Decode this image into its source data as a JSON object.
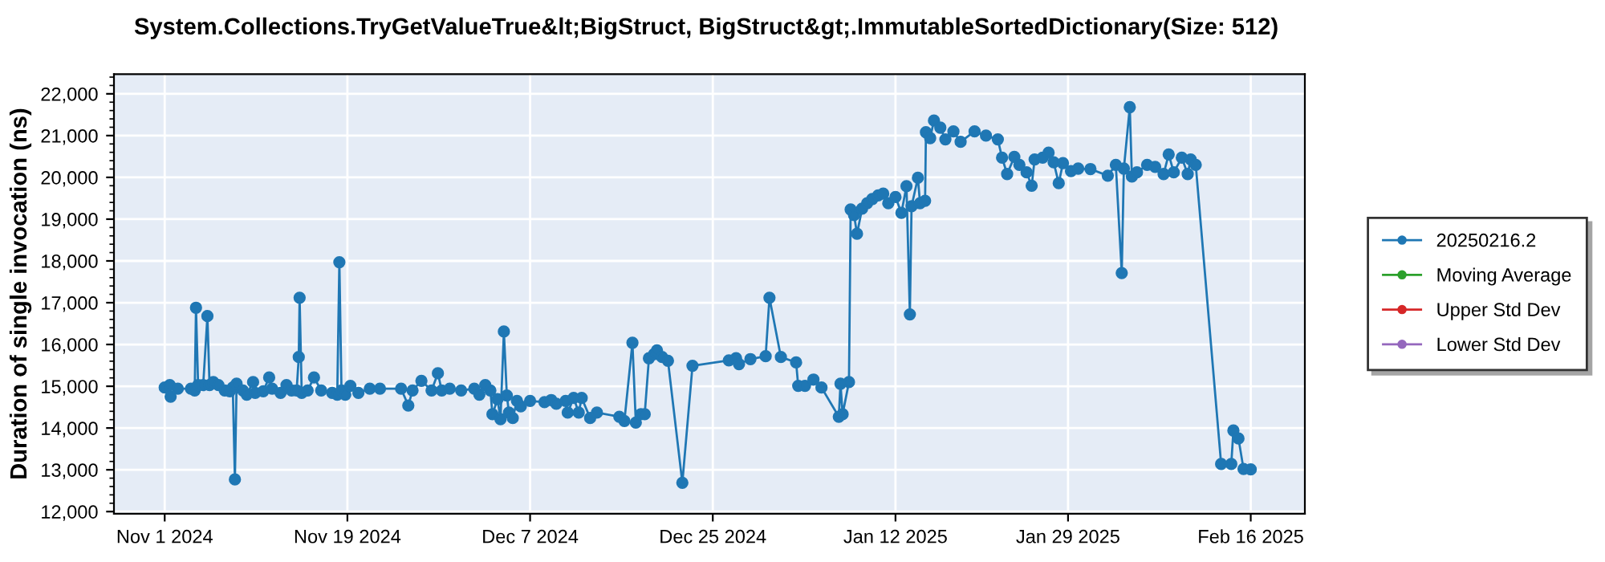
{
  "chart_data": {
    "type": "line",
    "title": "System.Collections.TryGetValueTrue&lt;BigStruct, BigStruct&gt;.ImmutableSortedDictionary(Size: 512)",
    "ylabel": "Duration of single invocation (ns)",
    "xlim": [
      "2024-10-27T00:00",
      "2025-02-21T08:00"
    ],
    "xticks": [
      {
        "value": "2024-11-01",
        "label": "Nov 1 2024"
      },
      {
        "value": "2024-11-19",
        "label": "Nov 19 2024"
      },
      {
        "value": "2024-12-07",
        "label": "Dec 7 2024"
      },
      {
        "value": "2024-12-25",
        "label": "Dec 25 2024"
      },
      {
        "value": "2025-01-12",
        "label": "Jan 12 2025"
      },
      {
        "value": "2025-01-29",
        "label": "Jan 29 2025"
      },
      {
        "value": "2025-02-16",
        "label": "Feb 16 2025"
      }
    ],
    "ylim": [
      11950,
      22470
    ],
    "yticks": [
      {
        "value": 12000,
        "label": "12,000"
      },
      {
        "value": 13000,
        "label": "13,000"
      },
      {
        "value": 14000,
        "label": "14,000"
      },
      {
        "value": 15000,
        "label": "15,000"
      },
      {
        "value": 16000,
        "label": "16,000"
      },
      {
        "value": 17000,
        "label": "17,000"
      },
      {
        "value": 18000,
        "label": "18,000"
      },
      {
        "value": 19000,
        "label": "19,000"
      },
      {
        "value": 20000,
        "label": "20,000"
      },
      {
        "value": 21000,
        "label": "21,000"
      },
      {
        "value": 22000,
        "label": "22,000"
      }
    ],
    "grid": true,
    "legend": "right",
    "marker": "circle",
    "line_style": "solid",
    "series": [
      {
        "name": "20250216.2",
        "color": "#1f77b4",
        "x": [
          "2024-11-01T00:00",
          "2024-11-01T12:00",
          "2024-11-01T14:00",
          "2024-11-02T07:00",
          "2024-11-03T14:00",
          "2024-11-03T23:00",
          "2024-11-04T02:00",
          "2024-11-04T07:00",
          "2024-11-04T19:00",
          "2024-11-05T05:00",
          "2024-11-05T10:00",
          "2024-11-05T19:00",
          "2024-11-06T07:00",
          "2024-11-06T22:00",
          "2024-11-07T10:00",
          "2024-11-07T17:00",
          "2024-11-07T22:00",
          "2024-11-08T02:00",
          "2024-11-08T17:00",
          "2024-11-09T02:00",
          "2024-11-09T17:00",
          "2024-11-09T22:00",
          "2024-11-10T17:00",
          "2024-11-11T07:00",
          "2024-11-11T14:00",
          "2024-11-12T10:00",
          "2024-11-13T00:00",
          "2024-11-13T12:00",
          "2024-11-14T00:00",
          "2024-11-14T05:00",
          "2024-11-14T07:00",
          "2024-11-14T12:00",
          "2024-11-15T02:00",
          "2024-11-15T17:00",
          "2024-11-16T10:00",
          "2024-11-17T12:00",
          "2024-11-18T00:00",
          "2024-11-18T05:00",
          "2024-11-18T10:00",
          "2024-11-18T19:00",
          "2024-11-19T07:00",
          "2024-11-20T02:00",
          "2024-11-21T05:00",
          "2024-11-22T05:00",
          "2024-11-24T07:00",
          "2024-11-25T00:00",
          "2024-11-25T10:00",
          "2024-11-26T07:00",
          "2024-11-27T07:00",
          "2024-11-27T22:00",
          "2024-11-28T07:00",
          "2024-11-29T02:00",
          "2024-11-30T05:00",
          "2024-12-01T12:00",
          "2024-12-02T00:00",
          "2024-12-02T14:00",
          "2024-12-03T02:00",
          "2024-12-03T07:00",
          "2024-12-03T19:00",
          "2024-12-04T02:00",
          "2024-12-04T10:00",
          "2024-12-04T17:00",
          "2024-12-04T22:00",
          "2024-12-05T07:00",
          "2024-12-05T17:00",
          "2024-12-06T02:00",
          "2024-12-07T00:00",
          "2024-12-08T10:00",
          "2024-12-09T02:00",
          "2024-12-09T14:00",
          "2024-12-10T12:00",
          "2024-12-10T17:00",
          "2024-12-11T07:00",
          "2024-12-11T19:00",
          "2024-12-12T02:00",
          "2024-12-12T22:00",
          "2024-12-13T14:00",
          "2024-12-15T19:00",
          "2024-12-16T07:00",
          "2024-12-17T02:00",
          "2024-12-17T10:00",
          "2024-12-17T22:00",
          "2024-12-18T07:00",
          "2024-12-18T17:00",
          "2024-12-19T05:00",
          "2024-12-19T12:00",
          "2024-12-20T00:00",
          "2024-12-20T14:00",
          "2024-12-22T00:00",
          "2024-12-23T00:00",
          "2024-12-26T14:00",
          "2024-12-27T07:00",
          "2024-12-27T14:00",
          "2024-12-28T17:00",
          "2024-12-30T05:00",
          "2024-12-30T14:00",
          "2024-12-31T17:00",
          "2025-01-02T05:00",
          "2025-01-02T10:00",
          "2025-01-03T02:00",
          "2025-01-03T22:00",
          "2025-01-04T17:00",
          "2025-01-06T10:00",
          "2025-01-06T14:00",
          "2025-01-06T19:00",
          "2025-01-07T10:00",
          "2025-01-07T14:00",
          "2025-01-07T22:00",
          "2025-01-08T05:00",
          "2025-01-08T17:00",
          "2025-01-09T05:00",
          "2025-01-09T17:00",
          "2025-01-10T07:00",
          "2025-01-10T19:00",
          "2025-01-11T07:00",
          "2025-01-12T00:00",
          "2025-01-12T14:00",
          "2025-01-13T02:00",
          "2025-01-13T10:00",
          "2025-01-13T14:00",
          "2025-01-14T05:00",
          "2025-01-14T10:00",
          "2025-01-14T22:00",
          "2025-01-15T00:00",
          "2025-01-15T10:00",
          "2025-01-15T19:00",
          "2025-01-16T10:00",
          "2025-01-16T22:00",
          "2025-01-17T17:00",
          "2025-01-18T10:00",
          "2025-01-19T19:00",
          "2025-01-20T22:00",
          "2025-01-22T02:00",
          "2025-01-22T12:00",
          "2025-01-23T00:00",
          "2025-01-23T17:00",
          "2025-01-24T05:00",
          "2025-01-24T22:00",
          "2025-01-25T10:00",
          "2025-01-25T17:00",
          "2025-01-26T12:00",
          "2025-01-27T02:00",
          "2025-01-27T14:00",
          "2025-01-28T02:00",
          "2025-01-28T12:00",
          "2025-01-29T07:00",
          "2025-01-30T00:00",
          "2025-01-31T05:00",
          "2025-02-01T22:00",
          "2025-02-02T17:00",
          "2025-02-03T07:00",
          "2025-02-03T12:00",
          "2025-02-04T02:00",
          "2025-02-04T07:00",
          "2025-02-04T19:00",
          "2025-02-05T19:00",
          "2025-02-06T14:00",
          "2025-02-07T10:00",
          "2025-02-07T22:00",
          "2025-02-08T10:00",
          "2025-02-09T05:00",
          "2025-02-09T19:00",
          "2025-02-10T02:00",
          "2025-02-10T14:00",
          "2025-02-13T02:00",
          "2025-02-14T02:00",
          "2025-02-14T07:00",
          "2025-02-14T19:00",
          "2025-02-15T07:00",
          "2025-02-16T00:00"
        ],
        "values": [
          14970,
          15030,
          14750,
          14940,
          14940,
          14900,
          16880,
          15030,
          15030,
          16680,
          15030,
          15100,
          15030,
          14900,
          14880,
          14970,
          12770,
          15060,
          14900,
          14800,
          15100,
          14840,
          14880,
          15210,
          14940,
          14840,
          15030,
          14900,
          14900,
          15700,
          17120,
          14840,
          14900,
          15210,
          14900,
          14840,
          14800,
          17970,
          14900,
          14800,
          15010,
          14840,
          14940,
          14940,
          14940,
          14540,
          14900,
          15130,
          14900,
          15310,
          14900,
          14940,
          14900,
          14940,
          14800,
          15030,
          14900,
          14330,
          14690,
          14210,
          16310,
          14780,
          14370,
          14240,
          14650,
          14520,
          14650,
          14620,
          14670,
          14580,
          14650,
          14370,
          14720,
          14370,
          14720,
          14240,
          14370,
          14270,
          14170,
          16040,
          14130,
          14330,
          14330,
          15670,
          15770,
          15860,
          15700,
          15610,
          12690,
          15490,
          15620,
          15670,
          15530,
          15650,
          15720,
          17120,
          15700,
          15570,
          15010,
          15010,
          15160,
          14970,
          14270,
          15060,
          14330,
          15100,
          19230,
          19100,
          18650,
          19250,
          19380,
          19480,
          19570,
          19610,
          19380,
          19530,
          19150,
          19790,
          16720,
          19310,
          19990,
          19380,
          19440,
          21080,
          20940,
          21360,
          21190,
          20910,
          21100,
          20850,
          21100,
          21000,
          20910,
          20470,
          20080,
          20490,
          20300,
          20120,
          19800,
          20430,
          20470,
          20590,
          20360,
          19860,
          20340,
          20150,
          20210,
          20200,
          20040,
          20300,
          17710,
          20210,
          21680,
          20020,
          20120,
          20300,
          20250,
          20080,
          20550,
          20120,
          20470,
          20080,
          20430,
          20300,
          13140,
          13140,
          13940,
          13750,
          13020,
          13010
        ]
      },
      {
        "name": "Moving Average",
        "color": "#2ca02c"
      },
      {
        "name": "Upper Std Dev",
        "color": "#d62728"
      },
      {
        "name": "Lower Std Dev",
        "color": "#9467bd"
      }
    ]
  }
}
